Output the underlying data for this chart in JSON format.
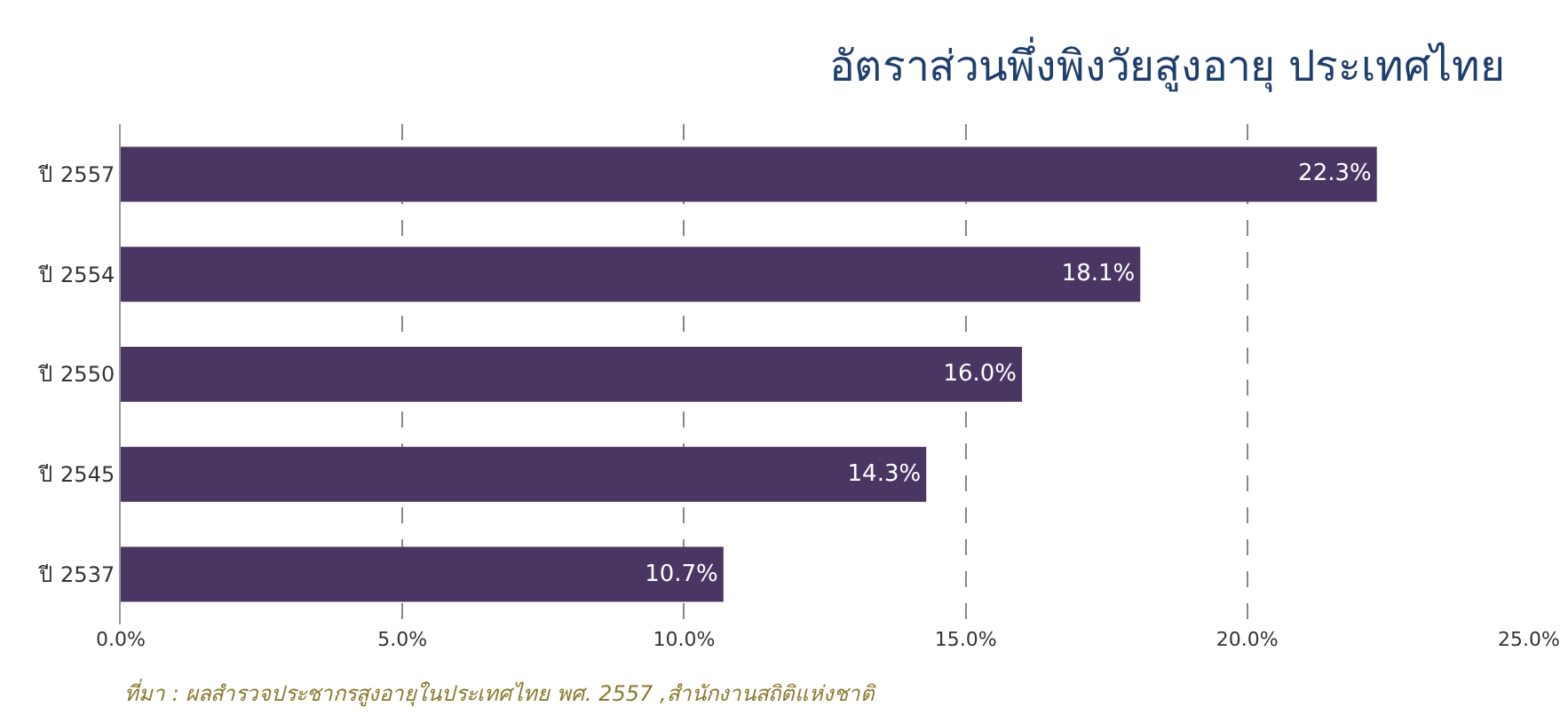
{
  "chart_data": {
    "type": "bar",
    "orientation": "horizontal",
    "title": "อัตราส่วนพึ่งพิงวัยสูงอายุ ประเทศไทย",
    "categories": [
      "ปี 2557",
      "ปี 2554",
      "ปี 2550",
      "ปี 2545",
      "ปี 2537"
    ],
    "values": [
      22.3,
      18.1,
      16.0,
      14.3,
      10.7
    ],
    "value_labels": [
      "22.3%",
      "18.1%",
      "16.0%",
      "14.3%",
      "10.7%"
    ],
    "color": "#4a3663",
    "xlim": [
      0,
      25
    ],
    "xticks": [
      {
        "value": 0,
        "label": "0.0%"
      },
      {
        "value": 5,
        "label": "5.0%"
      },
      {
        "value": 10,
        "label": "10.0%"
      },
      {
        "value": 15,
        "label": "15.0%"
      },
      {
        "value": 20,
        "label": "20.0%"
      },
      {
        "value": 25,
        "label": "25.0%"
      }
    ],
    "grid": "x",
    "annotations": [
      "ที่มา : ผลสำรวจประชากรสูงอายุในประเทศไทย พศ. 2557 ,สำนักงานสถิติแห่งชาติ"
    ]
  }
}
